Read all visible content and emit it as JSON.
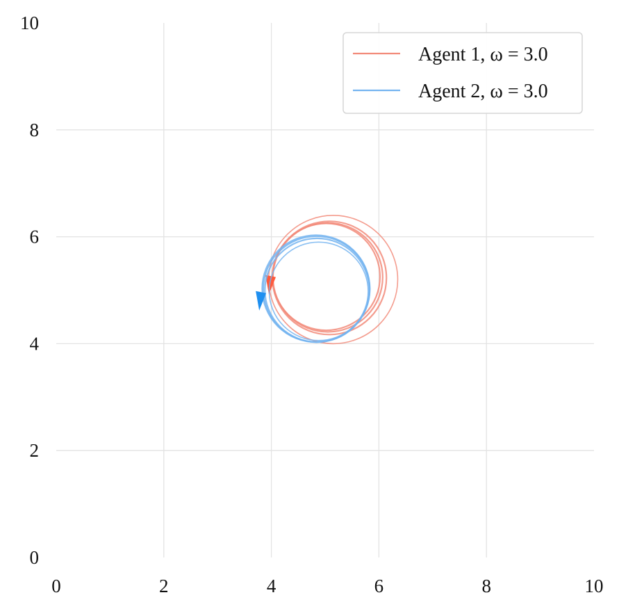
{
  "chart_data": {
    "type": "line",
    "title": "",
    "xlabel": "",
    "ylabel": "",
    "xlim": [
      0,
      10
    ],
    "ylim": [
      0,
      10
    ],
    "grid": true,
    "legend_position": "top-right",
    "xticks": [
      0,
      2,
      4,
      6,
      8,
      10
    ],
    "yticks": [
      0,
      2,
      4,
      6,
      8,
      10
    ],
    "series": [
      {
        "name": "Agent 1, ω = 3.0",
        "color": "#f28b7a",
        "arrow_color": "#ff5a3c",
        "trajectory": [
          {
            "cx": 5.15,
            "cy": 5.2,
            "r": 1.2
          },
          {
            "cx": 5.08,
            "cy": 5.23,
            "r": 1.06
          },
          {
            "cx": 5.05,
            "cy": 5.24,
            "r": 1.02
          },
          {
            "cx": 5.02,
            "cy": 5.25,
            "r": 1.0
          }
        ],
        "arrow": {
          "x": 3.98,
          "y": 5.05,
          "direction": "down"
        }
      },
      {
        "name": "Agent 2, ω = 3.0",
        "color": "#74b4f0",
        "arrow_color": "#1e8ff0",
        "trajectory": [
          {
            "cx": 4.88,
            "cy": 4.98,
            "r": 0.92
          },
          {
            "cx": 4.85,
            "cy": 5.0,
            "r": 0.97
          },
          {
            "cx": 4.84,
            "cy": 5.02,
            "r": 0.99
          },
          {
            "cx": 4.83,
            "cy": 5.03,
            "r": 1.0
          }
        ],
        "arrow": {
          "x": 3.8,
          "y": 4.75,
          "direction": "down"
        }
      }
    ]
  }
}
